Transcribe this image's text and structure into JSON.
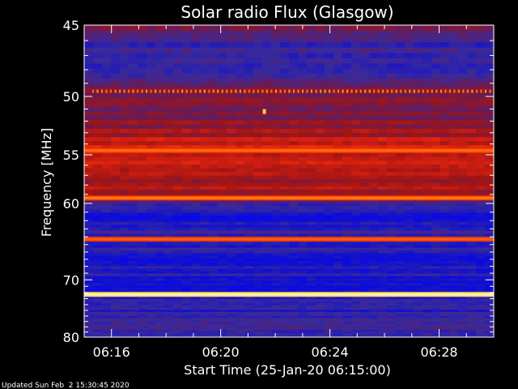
{
  "chart_data": {
    "type": "heatmap",
    "title": "Solar radio Flux (Glasgow)",
    "ylabel": "Frequency [MHz]",
    "xlabel": "Start Time (25-Jan-20 06:15:00)",
    "footer": "Updated Sun Feb  2 15:30:45 2020",
    "x_unit": "minutes after 06:15",
    "xlim": [
      0,
      15
    ],
    "ylim": [
      45,
      80
    ],
    "y_scale": "reciprocal",
    "x_ticks": [
      {
        "label": "06:16",
        "value": 1
      },
      {
        "label": "06:20",
        "value": 5
      },
      {
        "label": "06:24",
        "value": 9
      },
      {
        "label": "06:28",
        "value": 13
      }
    ],
    "y_ticks": [
      {
        "label": "45",
        "value": 45
      },
      {
        "label": "50",
        "value": 50
      },
      {
        "label": "55",
        "value": 55
      },
      {
        "label": "60",
        "value": 60
      },
      {
        "label": "70",
        "value": 70
      },
      {
        "label": "80",
        "value": 80
      }
    ],
    "colormap": [
      "#0000ff",
      "#1010d0",
      "#3a2a9a",
      "#6a1a55",
      "#a01515",
      "#d82010",
      "#ff4000",
      "#ff9a20",
      "#ffe060",
      "#ffffe0"
    ],
    "background_intensity": [
      {
        "freq": 45.2,
        "level": 0.35
      },
      {
        "freq": 46,
        "level": 0.2
      },
      {
        "freq": 47.5,
        "level": 0.22
      },
      {
        "freq": 49,
        "level": 0.28
      },
      {
        "freq": 49.7,
        "level": 0.42
      },
      {
        "freq": 50.5,
        "level": 0.36
      },
      {
        "freq": 52,
        "level": 0.38
      },
      {
        "freq": 53.5,
        "level": 0.5
      },
      {
        "freq": 54.4,
        "level": 0.58
      },
      {
        "freq": 55.5,
        "level": 0.52
      },
      {
        "freq": 57,
        "level": 0.48
      },
      {
        "freq": 58.5,
        "level": 0.44
      },
      {
        "freq": 59.2,
        "level": 0.38
      },
      {
        "freq": 60.5,
        "level": 0.18
      },
      {
        "freq": 62,
        "level": 0.1
      },
      {
        "freq": 63.5,
        "level": 0.22
      },
      {
        "freq": 65,
        "level": 0.2
      },
      {
        "freq": 67,
        "level": 0.12
      },
      {
        "freq": 69,
        "level": 0.16
      },
      {
        "freq": 71,
        "level": 0.1
      },
      {
        "freq": 73,
        "level": 0.2
      },
      {
        "freq": 75,
        "level": 0.16
      },
      {
        "freq": 77,
        "level": 0.22
      },
      {
        "freq": 79.5,
        "level": 0.2
      }
    ],
    "emission_lines": [
      {
        "freq": 49.6,
        "level": 0.75,
        "dotted": true
      },
      {
        "freq": 54.6,
        "level": 0.72
      },
      {
        "freq": 59.4,
        "level": 0.74
      },
      {
        "freq": 64.3,
        "level": 0.7
      },
      {
        "freq": 72.3,
        "level": 0.95
      }
    ],
    "point_features": [
      {
        "time": 6.6,
        "freq": 51.2,
        "level": 0.85
      }
    ]
  }
}
